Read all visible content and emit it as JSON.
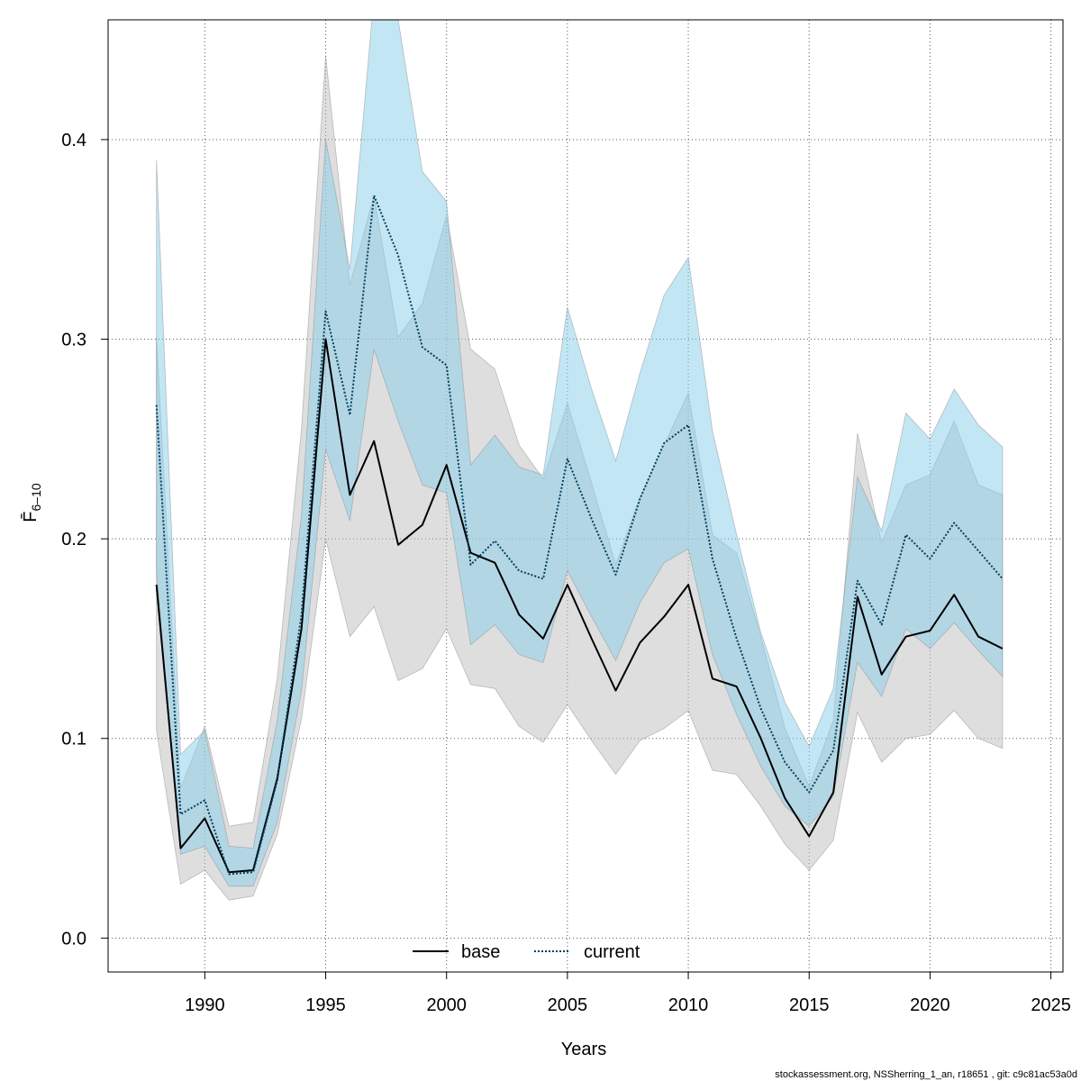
{
  "chart_data": {
    "type": "line",
    "title": "",
    "xlabel": "Years",
    "ylabel": "F̄",
    "ylabel_sub": "6–10",
    "xlim": [
      1986,
      2025.5
    ],
    "ylim": [
      -0.017,
      0.46
    ],
    "xticks": [
      1990,
      1995,
      2000,
      2005,
      2010,
      2015,
      2020,
      2025
    ],
    "yticks": [
      0.0,
      0.1,
      0.2,
      0.3,
      0.4
    ],
    "ytick_labels": [
      "0.0",
      "0.1",
      "0.2",
      "0.3",
      "0.4"
    ],
    "grid": true,
    "legend": {
      "position": "bottom-center"
    },
    "x": [
      1988,
      1989,
      1990,
      1991,
      1992,
      1993,
      1994,
      1995,
      1996,
      1997,
      1998,
      1999,
      2000,
      2001,
      2002,
      2003,
      2004,
      2005,
      2006,
      2007,
      2008,
      2009,
      2010,
      2011,
      2012,
      2013,
      2014,
      2015,
      2016,
      2017,
      2018,
      2019,
      2020,
      2021,
      2022,
      2023
    ],
    "series": [
      {
        "name": "base",
        "line_color": "#000000",
        "band_color": "#bebebe",
        "dash": "solid",
        "values": [
          0.177,
          0.045,
          0.06,
          0.033,
          0.034,
          0.08,
          0.155,
          0.3,
          0.222,
          0.249,
          0.197,
          0.207,
          0.237,
          0.193,
          0.188,
          0.162,
          0.15,
          0.177,
          0.15,
          0.124,
          0.148,
          0.161,
          0.177,
          0.13,
          0.126,
          0.1,
          0.07,
          0.051,
          0.073,
          0.171,
          0.132,
          0.151,
          0.154,
          0.172,
          0.151,
          0.145
        ],
        "lower": [
          0.104,
          0.027,
          0.034,
          0.019,
          0.021,
          0.052,
          0.11,
          0.2,
          0.151,
          0.166,
          0.129,
          0.135,
          0.155,
          0.127,
          0.125,
          0.106,
          0.098,
          0.117,
          0.099,
          0.082,
          0.099,
          0.105,
          0.114,
          0.084,
          0.082,
          0.066,
          0.047,
          0.034,
          0.049,
          0.113,
          0.088,
          0.1,
          0.102,
          0.114,
          0.1,
          0.095
        ],
        "upper": [
          0.301,
          0.075,
          0.106,
          0.056,
          0.058,
          0.13,
          0.255,
          0.442,
          0.327,
          0.372,
          0.301,
          0.318,
          0.362,
          0.295,
          0.285,
          0.247,
          0.23,
          0.268,
          0.228,
          0.187,
          0.221,
          0.247,
          0.273,
          0.202,
          0.193,
          0.151,
          0.105,
          0.076,
          0.109,
          0.253,
          0.198,
          0.227,
          0.232,
          0.259,
          0.227,
          0.222
        ]
      },
      {
        "name": "current",
        "line_color": "#00405c",
        "band_color": "#87ceeb",
        "dash": "dotted",
        "values": [
          0.267,
          0.062,
          0.069,
          0.032,
          0.033,
          0.079,
          0.162,
          0.314,
          0.262,
          0.372,
          0.342,
          0.296,
          0.287,
          0.187,
          0.199,
          0.184,
          0.18,
          0.24,
          0.21,
          0.182,
          0.22,
          0.248,
          0.257,
          0.19,
          0.15,
          0.115,
          0.088,
          0.073,
          0.094,
          0.179,
          0.157,
          0.202,
          0.19,
          0.208,
          0.194,
          0.18
        ],
        "lower": [
          0.184,
          0.042,
          0.046,
          0.026,
          0.026,
          0.058,
          0.124,
          0.245,
          0.209,
          0.295,
          0.259,
          0.227,
          0.223,
          0.147,
          0.157,
          0.142,
          0.138,
          0.184,
          0.161,
          0.139,
          0.168,
          0.188,
          0.195,
          0.142,
          0.112,
          0.086,
          0.066,
          0.056,
          0.071,
          0.138,
          0.121,
          0.155,
          0.145,
          0.158,
          0.144,
          0.131
        ],
        "upper": [
          0.39,
          0.092,
          0.104,
          0.046,
          0.045,
          0.109,
          0.212,
          0.4,
          0.335,
          0.472,
          0.46,
          0.384,
          0.369,
          0.237,
          0.252,
          0.236,
          0.232,
          0.316,
          0.275,
          0.239,
          0.283,
          0.322,
          0.341,
          0.254,
          0.202,
          0.153,
          0.118,
          0.096,
          0.125,
          0.231,
          0.204,
          0.263,
          0.25,
          0.275,
          0.257,
          0.246
        ]
      }
    ]
  },
  "footer": "stockassessment.org, NSSherring_1_an, r18651 , git: c9c81ac53a0d"
}
